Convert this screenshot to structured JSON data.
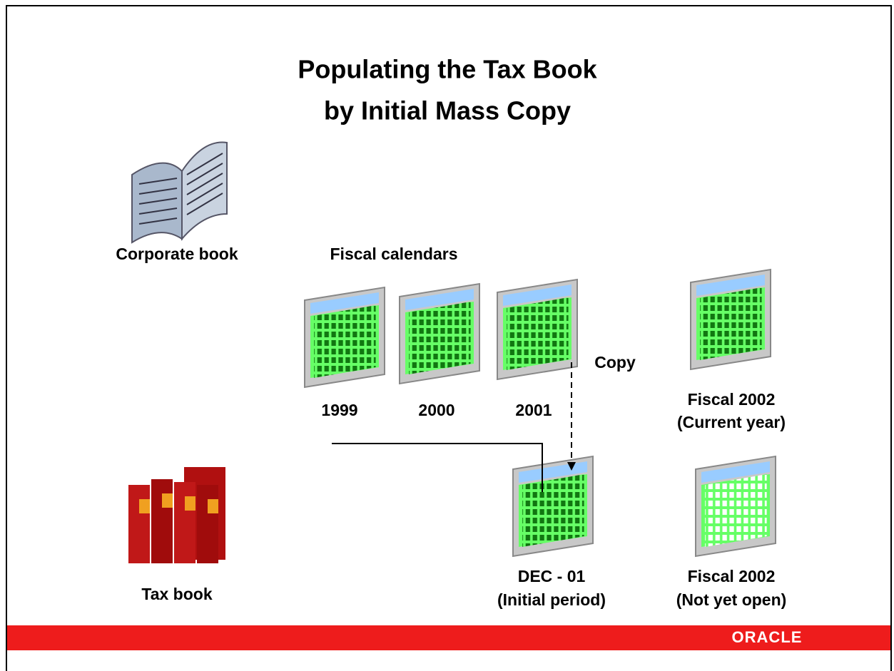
{
  "title": [
    "Populating the Tax Book",
    "by Initial Mass Copy"
  ],
  "corporate_book": {
    "label": "Corporate book"
  },
  "fiscal_calendars": {
    "label": "Fiscal calendars",
    "years": [
      "1999",
      "2000",
      "2001"
    ]
  },
  "copy_label": "Copy",
  "current_year": [
    "Fiscal 2002",
    "(Current year)"
  ],
  "initial_period": [
    "DEC - 01",
    "(Initial period)"
  ],
  "not_yet_open": [
    "Fiscal 2002",
    "(Not yet open)"
  ],
  "tax_book": {
    "label": "Tax book"
  },
  "footer": {
    "brand": "ORACLE"
  }
}
